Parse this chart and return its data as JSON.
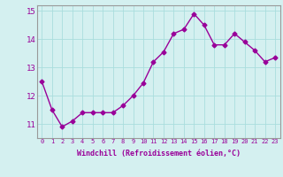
{
  "x": [
    0,
    1,
    2,
    3,
    4,
    5,
    6,
    7,
    8,
    9,
    10,
    11,
    12,
    13,
    14,
    15,
    16,
    17,
    18,
    19,
    20,
    21,
    22,
    23
  ],
  "y": [
    12.5,
    11.5,
    10.9,
    11.1,
    11.4,
    11.4,
    11.4,
    11.4,
    11.65,
    12.0,
    12.45,
    13.2,
    13.55,
    14.2,
    14.35,
    14.9,
    14.5,
    13.8,
    13.8,
    14.2,
    13.9,
    13.6,
    13.2,
    13.35
  ],
  "line_color": "#990099",
  "marker": "D",
  "marker_size": 2.5,
  "bg_color": "#d4f0f0",
  "grid_color": "#aadddd",
  "xlabel": "Windchill (Refroidissement éolien,°C)",
  "xlabel_color": "#990099",
  "tick_color": "#990099",
  "xlim": [
    -0.5,
    23.5
  ],
  "ylim": [
    10.5,
    15.2
  ],
  "yticks": [
    11,
    12,
    13,
    14,
    15
  ],
  "xticks": [
    0,
    1,
    2,
    3,
    4,
    5,
    6,
    7,
    8,
    9,
    10,
    11,
    12,
    13,
    14,
    15,
    16,
    17,
    18,
    19,
    20,
    21,
    22,
    23
  ],
  "xtick_labels": [
    "0",
    "1",
    "2",
    "3",
    "4",
    "5",
    "6",
    "7",
    "8",
    "9",
    "10",
    "11",
    "12",
    "13",
    "14",
    "15",
    "16",
    "17",
    "18",
    "19",
    "20",
    "21",
    "22",
    "23"
  ],
  "line_width": 1.0,
  "spine_color": "#999999",
  "xlabel_fontsize": 6.0,
  "xtick_fontsize": 5.0,
  "ytick_fontsize": 6.5
}
